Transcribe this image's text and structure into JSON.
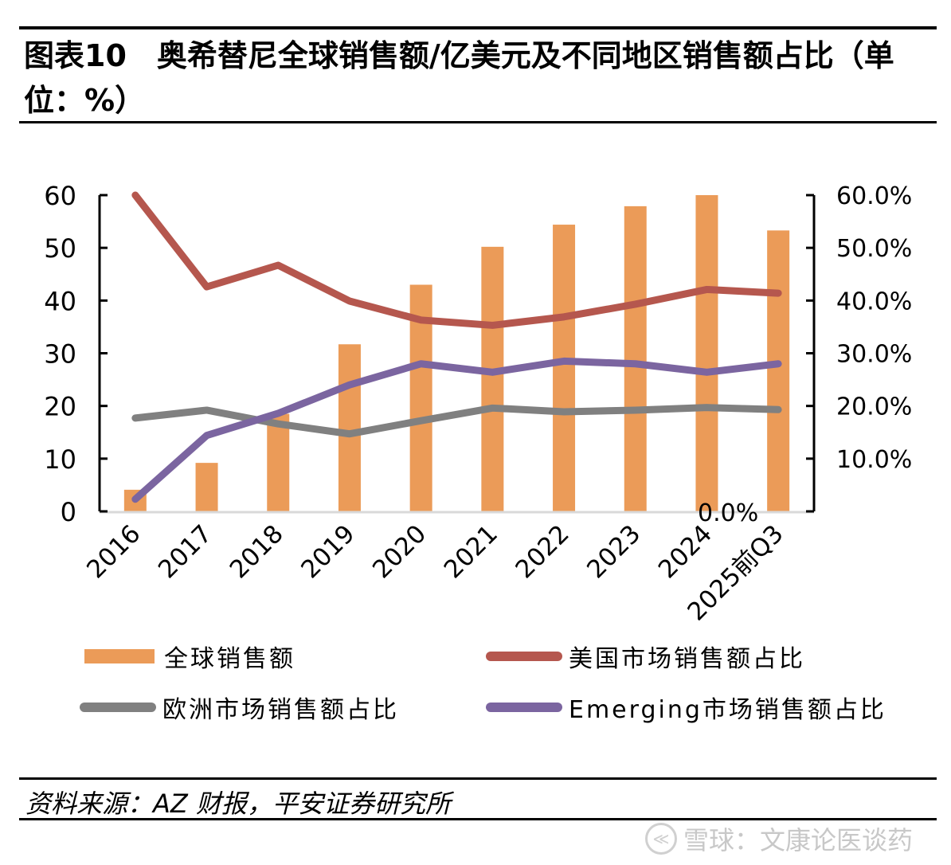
{
  "header": {
    "title": "图表10　奥希替尼全球销售额/亿美元及不同地区销售额占比（单位：%）"
  },
  "chart_data": {
    "type": "bar+line",
    "title": "图表10　奥希替尼全球销售额/亿美元及不同地区销售额占比（单位：%）",
    "categories": [
      "2016",
      "2017",
      "2018",
      "2019",
      "2020",
      "2021",
      "2022",
      "2023",
      "2024",
      "2025前Q3"
    ],
    "left_axis": {
      "label": "",
      "ylim": [
        0,
        60
      ],
      "ticks": [
        "0",
        "10",
        "20",
        "30",
        "40",
        "50",
        "60"
      ]
    },
    "right_axis": {
      "label": "",
      "ylim": [
        0,
        60
      ],
      "ticks": [
        "0.0%",
        "10.0%",
        "20.0%",
        "30.0%",
        "40.0%",
        "50.0%",
        "60.0%"
      ]
    },
    "grid": false,
    "legend_position": "bottom",
    "series": [
      {
        "name": "全球销售额",
        "type": "bar",
        "axis": "left",
        "color": "#EB9B58",
        "values": [
          4.1,
          9.2,
          18.5,
          31.7,
          43.0,
          50.2,
          54.4,
          57.9,
          60.0,
          53.3
        ]
      },
      {
        "name": "美国市场销售额占比",
        "type": "line",
        "axis": "right",
        "color": "#B5574E",
        "values": [
          60.0,
          42.6,
          46.7,
          39.9,
          36.3,
          35.3,
          36.9,
          39.3,
          42.1,
          41.4
        ]
      },
      {
        "name": "欧洲市场销售额占比",
        "type": "line",
        "axis": "right",
        "color": "#808080",
        "values": [
          17.7,
          19.2,
          16.6,
          14.7,
          17.2,
          19.6,
          18.9,
          19.2,
          19.7,
          19.3
        ]
      },
      {
        "name": "Emerging市场销售额占比",
        "type": "line",
        "axis": "right",
        "color": "#7B65A0",
        "values": [
          2.3,
          14.4,
          18.6,
          24.0,
          28.0,
          26.4,
          28.5,
          28.0,
          26.4,
          28.0
        ]
      }
    ]
  },
  "footer": {
    "source": "资料来源：AZ 财报，平安证券研究所",
    "watermark": "雪球：文康论医谈药"
  }
}
